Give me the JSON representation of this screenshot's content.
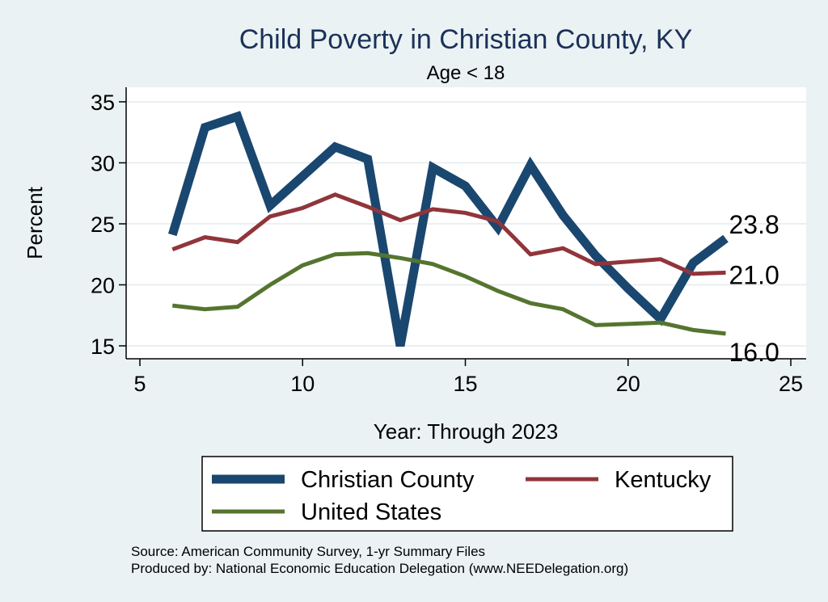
{
  "chart_data": {
    "type": "line",
    "title": "Child Poverty in Christian County, KY",
    "subtitle": "Age < 18",
    "xlabel": "Year: Through 2023",
    "ylabel": "Percent",
    "xlim": [
      5,
      25
    ],
    "ylim": [
      14.3,
      36
    ],
    "xticks": [
      "5",
      "10",
      "15",
      "20",
      "25"
    ],
    "yticks": [
      "15",
      "20",
      "25",
      "30",
      "35"
    ],
    "grid": true,
    "legend_position": "bottom",
    "series": [
      {
        "name": "Christian County",
        "color": "#1a476f",
        "x": [
          6,
          7,
          8,
          9,
          10,
          11,
          12,
          13,
          14,
          15,
          16,
          17,
          18,
          19,
          20,
          21,
          22,
          23
        ],
        "y": [
          24.1,
          32.9,
          33.8,
          26.5,
          28.9,
          31.3,
          30.3,
          15.0,
          29.6,
          28.1,
          24.7,
          29.8,
          25.7,
          22.4,
          19.7,
          17.2,
          21.8,
          23.8
        ]
      },
      {
        "name": "Kentucky",
        "color": "#90353b",
        "x": [
          6,
          7,
          8,
          9,
          10,
          11,
          12,
          13,
          14,
          15,
          16,
          17,
          18,
          19,
          20,
          21,
          22,
          23
        ],
        "y": [
          22.9,
          23.9,
          23.5,
          25.6,
          26.3,
          27.4,
          26.4,
          25.3,
          26.2,
          25.9,
          25.2,
          22.5,
          23.0,
          21.7,
          21.9,
          22.1,
          20.9,
          21.0
        ]
      },
      {
        "name": "United States",
        "color": "#55752f",
        "x": [
          6,
          7,
          8,
          9,
          10,
          11,
          12,
          13,
          14,
          15,
          16,
          17,
          18,
          19,
          20,
          21,
          22,
          23
        ],
        "y": [
          18.3,
          18.0,
          18.2,
          20.0,
          21.6,
          22.5,
          22.6,
          22.2,
          21.7,
          20.7,
          19.5,
          18.5,
          18.0,
          16.7,
          16.8,
          16.9,
          16.3,
          16.0
        ]
      }
    ],
    "end_labels": [
      "23.8",
      "21.0",
      "16.0"
    ],
    "notes": [
      "Source: American Community Survey, 1-yr Summary Files",
      "Produced by: National Economic Education Delegation (www.NEEDelegation.org)"
    ]
  }
}
